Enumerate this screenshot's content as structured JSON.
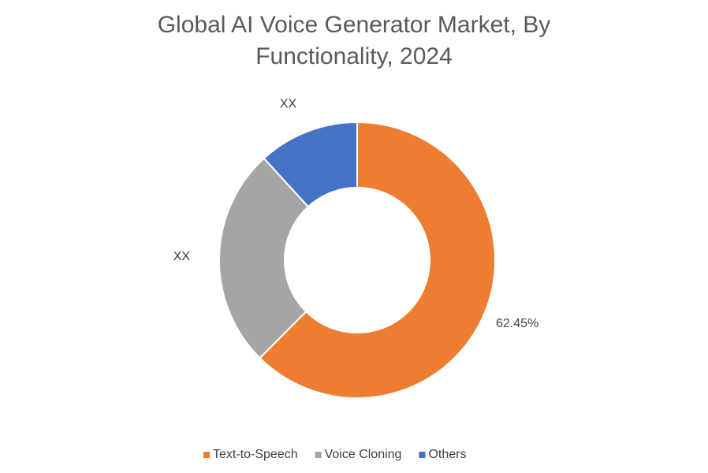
{
  "chart_data": {
    "type": "donut",
    "title": "Global AI Voice Generator Market, By Functionality, 2024",
    "categories": [
      "Text-to-Speech",
      "Voice Cloning",
      "Others"
    ],
    "values": [
      62.45,
      25.75,
      11.8
    ],
    "value_labels": [
      "62.45%",
      "XX",
      "XX"
    ],
    "colors": [
      "#ED7D31",
      "#A5A5A5",
      "#4472C4"
    ],
    "legend": "bottom"
  }
}
